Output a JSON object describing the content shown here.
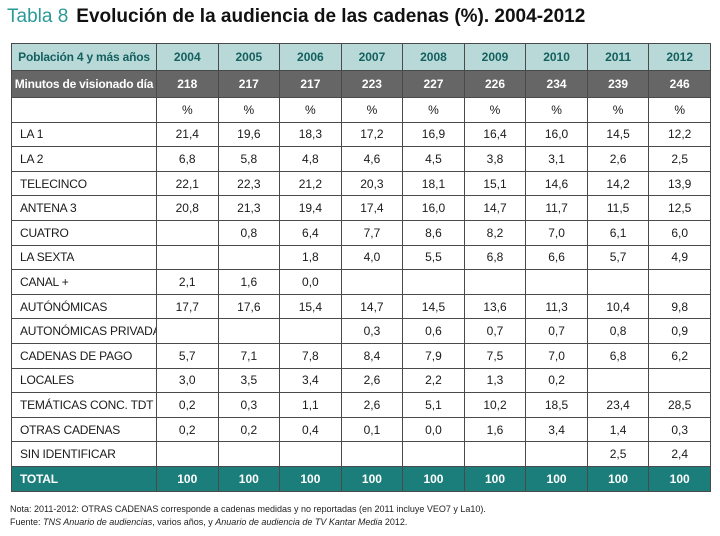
{
  "title": {
    "number": "Tabla 8",
    "text": "Evolución de la audiencia de las cadenas (%). 2004-2012"
  },
  "table": {
    "header_label": "Población 4 y más años",
    "years": [
      "2004",
      "2005",
      "2006",
      "2007",
      "2008",
      "2009",
      "2010",
      "2011",
      "2012"
    ],
    "minutes_label": "Minutos de visionado día",
    "minutes": [
      "218",
      "217",
      "217",
      "223",
      "227",
      "226",
      "234",
      "239",
      "246"
    ],
    "unit_label": "",
    "units": [
      "%",
      "%",
      "%",
      "%",
      "%",
      "%",
      "%",
      "%",
      "%"
    ],
    "rows": [
      {
        "label": "LA 1",
        "values": [
          "21,4",
          "19,6",
          "18,3",
          "17,2",
          "16,9",
          "16,4",
          "16,0",
          "14,5",
          "12,2"
        ]
      },
      {
        "label": "LA 2",
        "values": [
          "6,8",
          "5,8",
          "4,8",
          "4,6",
          "4,5",
          "3,8",
          "3,1",
          "2,6",
          "2,5"
        ]
      },
      {
        "label": "TELECINCO",
        "values": [
          "22,1",
          "22,3",
          "21,2",
          "20,3",
          "18,1",
          "15,1",
          "14,6",
          "14,2",
          "13,9"
        ]
      },
      {
        "label": "ANTENA 3",
        "values": [
          "20,8",
          "21,3",
          "19,4",
          "17,4",
          "16,0",
          "14,7",
          "11,7",
          "11,5",
          "12,5"
        ]
      },
      {
        "label": "CUATRO",
        "values": [
          "",
          "0,8",
          "6,4",
          "7,7",
          "8,6",
          "8,2",
          "7,0",
          "6,1",
          "6,0"
        ]
      },
      {
        "label": "LA SEXTA",
        "values": [
          "",
          "",
          "1,8",
          "4,0",
          "5,5",
          "6,8",
          "6,6",
          "5,7",
          "4,9"
        ]
      },
      {
        "label": "CANAL +",
        "values": [
          "2,1",
          "1,6",
          "0,0",
          "",
          "",
          "",
          "",
          "",
          ""
        ]
      },
      {
        "label": "AUTÓNÓMICAS",
        "values": [
          "17,7",
          "17,6",
          "15,4",
          "14,7",
          "14,5",
          "13,6",
          "11,3",
          "10,4",
          "9,8"
        ]
      },
      {
        "label": "AUTONÓMICAS PRIVADAS",
        "values": [
          "",
          "",
          "",
          "0,3",
          "0,6",
          "0,7",
          "0,7",
          "0,8",
          "0,9"
        ]
      },
      {
        "label": "CADENAS DE PAGO",
        "values": [
          "5,7",
          "7,1",
          "7,8",
          "8,4",
          "7,9",
          "7,5",
          "7,0",
          "6,8",
          "6,2"
        ]
      },
      {
        "label": "LOCALES",
        "values": [
          "3,0",
          "3,5",
          "3,4",
          "2,6",
          "2,2",
          "1,3",
          "0,2",
          "",
          ""
        ]
      },
      {
        "label": "TEMÁTICAS CONC. TDT",
        "values": [
          "0,2",
          "0,3",
          "1,1",
          "2,6",
          "5,1",
          "10,2",
          "18,5",
          "23,4",
          "28,5"
        ]
      },
      {
        "label": "OTRAS CADENAS",
        "values": [
          "0,2",
          "0,2",
          "0,4",
          "0,1",
          "0,0",
          "1,6",
          "3,4",
          "1,4",
          "0,3"
        ]
      },
      {
        "label": "SIN IDENTIFICAR",
        "values": [
          "",
          "",
          "",
          "",
          "",
          "",
          "",
          "2,5",
          "2,4"
        ]
      }
    ],
    "total_label": "TOTAL",
    "totals": [
      "100",
      "100",
      "100",
      "100",
      "100",
      "100",
      "100",
      "100",
      "100"
    ]
  },
  "notes": {
    "note_text": "Nota: 2011-2012: OTRAS CADENAS corresponde a cadenas medidas y no reportadas (en 2011 incluye VEO7 y La10).",
    "source_prefix": "Fuente: ",
    "source_title1": "TNS Anuario de audiencias",
    "source_mid": ", varios años, y ",
    "source_title2": "Anuario de audiencia de TV Kantar Media",
    "source_suffix": " 2012."
  },
  "colors": {
    "title_number": "#2a9a97",
    "header_bg": "#b9d9d9",
    "header_text": "#14605f",
    "minutes_bg": "#666666",
    "total_bg": "#1b7e7b"
  }
}
